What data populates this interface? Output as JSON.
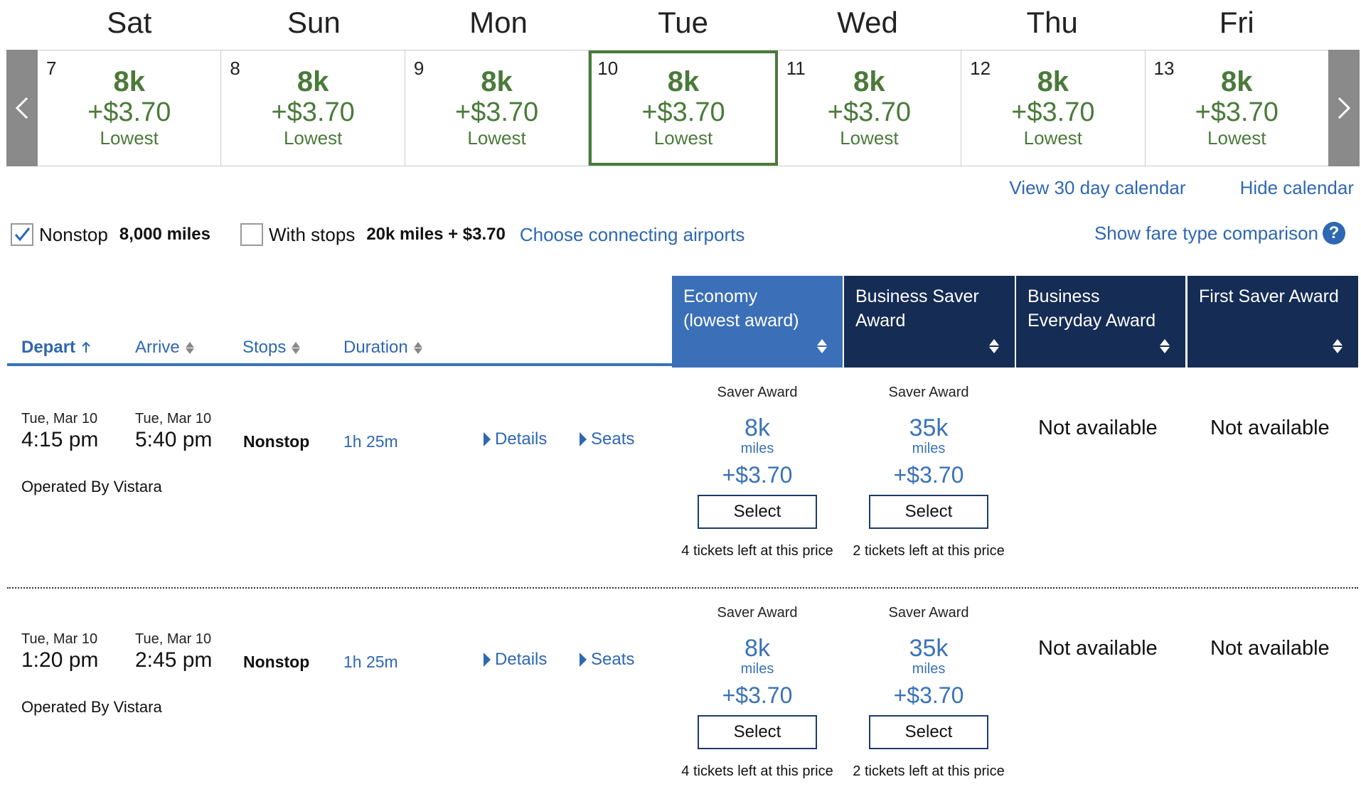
{
  "calendar": {
    "day_names": [
      "Sat",
      "Sun",
      "Mon",
      "Tue",
      "Wed",
      "Thu",
      "Fri"
    ],
    "days": [
      {
        "num": "7",
        "miles": "8k",
        "price": "+$3.70",
        "label": "Lowest",
        "selected": false
      },
      {
        "num": "8",
        "miles": "8k",
        "price": "+$3.70",
        "label": "Lowest",
        "selected": false
      },
      {
        "num": "9",
        "miles": "8k",
        "price": "+$3.70",
        "label": "Lowest",
        "selected": false
      },
      {
        "num": "10",
        "miles": "8k",
        "price": "+$3.70",
        "label": "Lowest",
        "selected": true
      },
      {
        "num": "11",
        "miles": "8k",
        "price": "+$3.70",
        "label": "Lowest",
        "selected": false
      },
      {
        "num": "12",
        "miles": "8k",
        "price": "+$3.70",
        "label": "Lowest",
        "selected": false
      },
      {
        "num": "13",
        "miles": "8k",
        "price": "+$3.70",
        "label": "Lowest",
        "selected": false
      }
    ],
    "view_30_day": "View 30 day calendar",
    "hide": "Hide calendar"
  },
  "filters": {
    "nonstop_label": "Nonstop",
    "nonstop_checked": true,
    "nonstop_price": "8,000 miles",
    "stops_label": "With stops",
    "stops_checked": false,
    "stops_price": "20k miles + $3.70",
    "connecting_link": "Choose connecting airports",
    "fare_compare": "Show fare type comparison",
    "help_icon": "?"
  },
  "sort": {
    "depart": "Depart",
    "arrive": "Arrive",
    "stops": "Stops",
    "duration": "Duration"
  },
  "cabins": [
    {
      "line1": "Economy",
      "line2": "(lowest award)",
      "active": true
    },
    {
      "line1": "Business Saver",
      "line2": "Award",
      "active": false
    },
    {
      "line1": "Business",
      "line2": "Everyday Award",
      "active": false
    },
    {
      "line1": "First Saver Award",
      "line2": "",
      "active": false
    }
  ],
  "flights": [
    {
      "depart_date": "Tue, Mar 10",
      "depart_time": "4:15 pm",
      "arrive_date": "Tue, Mar 10",
      "arrive_time": "5:40 pm",
      "stops": "Nonstop",
      "duration": "1h 25m",
      "operated": "Operated By Vistara",
      "details": "Details",
      "seats": "Seats",
      "fares": [
        {
          "type": "Saver Award",
          "miles": "8k",
          "unit": "miles",
          "price": "+$3.70",
          "button": "Select",
          "left": "4 tickets left at this price"
        },
        {
          "type": "Saver Award",
          "miles": "35k",
          "unit": "miles",
          "price": "+$3.70",
          "button": "Select",
          "left": "2 tickets left at this price"
        }
      ],
      "na1": "Not available",
      "na2": "Not available"
    },
    {
      "depart_date": "Tue, Mar 10",
      "depart_time": "1:20 pm",
      "arrive_date": "Tue, Mar 10",
      "arrive_time": "2:45 pm",
      "stops": "Nonstop",
      "duration": "1h 25m",
      "operated": "Operated By Vistara",
      "details": "Details",
      "seats": "Seats",
      "fares": [
        {
          "type": "Saver Award",
          "miles": "8k",
          "unit": "miles",
          "price": "+$3.70",
          "button": "Select",
          "left": "4 tickets left at this price"
        },
        {
          "type": "Saver Award",
          "miles": "35k",
          "unit": "miles",
          "price": "+$3.70",
          "button": "Select",
          "left": "2 tickets left at this price"
        }
      ],
      "na1": "Not available",
      "na2": "Not available"
    }
  ],
  "colors": {
    "green": "#4a7a3a",
    "link": "#2e67b2",
    "navy": "#152c55",
    "active_cabin": "#3b6fb8"
  }
}
